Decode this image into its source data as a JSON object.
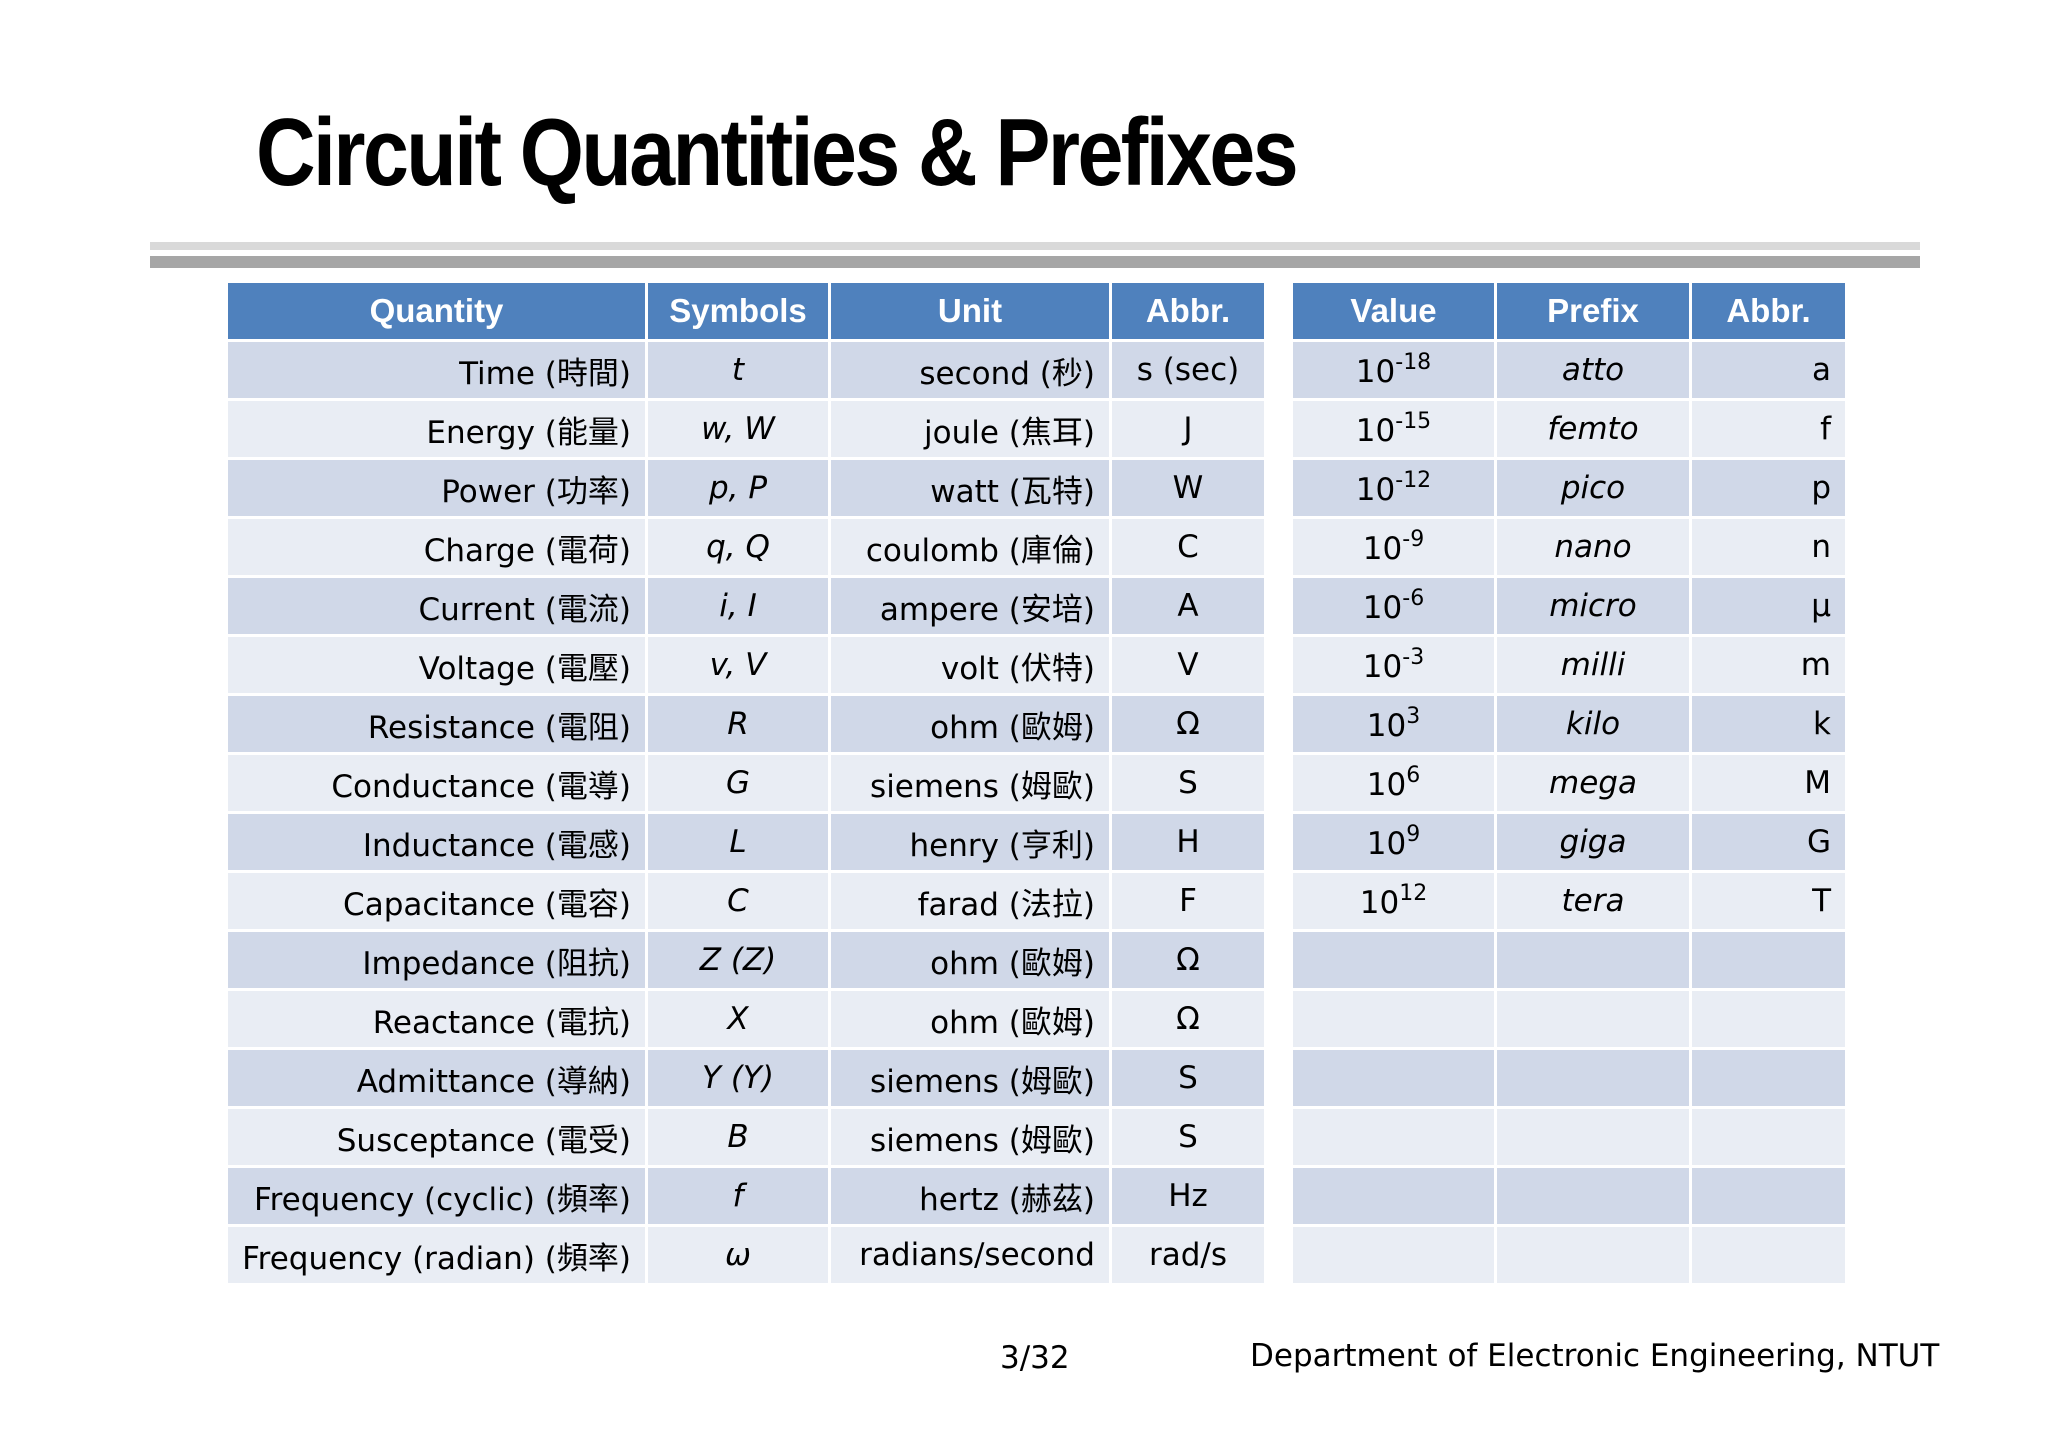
{
  "title": "Circuit Quantities & Prefixes",
  "quantities_table": {
    "headers": [
      "Quantity",
      "Symbols",
      "Unit",
      "Abbr."
    ],
    "rows": [
      {
        "quantity": "Time",
        "quantity_zh": "(時間)",
        "symbols": "t",
        "unit": "second (秒)",
        "abbr": "s (sec)"
      },
      {
        "quantity": "Energy",
        "quantity_zh": "(能量)",
        "symbols": "w, W",
        "unit": "joule (焦耳)",
        "abbr": "J"
      },
      {
        "quantity": "Power",
        "quantity_zh": "(功率)",
        "symbols": "p, P",
        "unit": "watt (瓦特)",
        "abbr": "W"
      },
      {
        "quantity": "Charge",
        "quantity_zh": "(電荷)",
        "symbols": "q, Q",
        "unit": "coulomb (庫倫)",
        "abbr": "C"
      },
      {
        "quantity": "Current",
        "quantity_zh": "(電流)",
        "symbols": "i, I",
        "unit": "ampere (安培)",
        "abbr": "A"
      },
      {
        "quantity": "Voltage",
        "quantity_zh": "(電壓)",
        "symbols": "v, V",
        "unit": "volt (伏特)",
        "abbr": "V"
      },
      {
        "quantity": "Resistance",
        "quantity_zh": "(電阻)",
        "symbols": "R",
        "unit": "ohm (歐姆)",
        "abbr": "Ω"
      },
      {
        "quantity": "Conductance",
        "quantity_zh": "(電導)",
        "symbols": "G",
        "unit": "siemens (姆歐)",
        "abbr": "S"
      },
      {
        "quantity": "Inductance",
        "quantity_zh": "(電感)",
        "symbols": "L",
        "unit": "henry (亨利)",
        "abbr": "H"
      },
      {
        "quantity": "Capacitance",
        "quantity_zh": "(電容)",
        "symbols": "C",
        "unit": "farad (法拉)",
        "abbr": "F"
      },
      {
        "quantity": "Impedance",
        "quantity_zh": "(阻抗)",
        "symbols": "Z (Z)",
        "unit": "ohm (歐姆)",
        "abbr": "Ω"
      },
      {
        "quantity": "Reactance",
        "quantity_zh": "(電抗)",
        "symbols": "X",
        "unit": "ohm (歐姆)",
        "abbr": "Ω"
      },
      {
        "quantity": "Admittance",
        "quantity_zh": "(導納)",
        "symbols": "Y (Y)",
        "unit": "siemens (姆歐)",
        "abbr": "S"
      },
      {
        "quantity": "Susceptance",
        "quantity_zh": "(電受)",
        "symbols": "B",
        "unit": "siemens (姆歐)",
        "abbr": "S"
      },
      {
        "quantity": "Frequency (cyclic)",
        "quantity_zh": "(頻率)",
        "symbols": "f",
        "unit": "hertz (赫茲)",
        "abbr": "Hz"
      },
      {
        "quantity": "Frequency (radian)",
        "quantity_zh": "(頻率)",
        "symbols": "ω",
        "unit": "radians/second",
        "abbr": "rad/s"
      }
    ]
  },
  "prefixes_table": {
    "headers": [
      "Value",
      "Prefix",
      "Abbr."
    ],
    "rows": [
      {
        "base": "10",
        "exp": "-18",
        "prefix": "atto",
        "abbr": "a"
      },
      {
        "base": "10",
        "exp": "-15",
        "prefix": "femto",
        "abbr": "f"
      },
      {
        "base": "10",
        "exp": "-12",
        "prefix": "pico",
        "abbr": "p"
      },
      {
        "base": "10",
        "exp": "-9",
        "prefix": "nano",
        "abbr": "n"
      },
      {
        "base": "10",
        "exp": "-6",
        "prefix": "micro",
        "abbr": "μ"
      },
      {
        "base": "10",
        "exp": "-3",
        "prefix": "milli",
        "abbr": "m"
      },
      {
        "base": "10",
        "exp": "3",
        "prefix": "kilo",
        "abbr": "k"
      },
      {
        "base": "10",
        "exp": "6",
        "prefix": "mega",
        "abbr": "M"
      },
      {
        "base": "10",
        "exp": "9",
        "prefix": "giga",
        "abbr": "G"
      },
      {
        "base": "10",
        "exp": "12",
        "prefix": "tera",
        "abbr": "T"
      },
      {
        "base": "",
        "exp": "",
        "prefix": "",
        "abbr": ""
      },
      {
        "base": "",
        "exp": "",
        "prefix": "",
        "abbr": ""
      },
      {
        "base": "",
        "exp": "",
        "prefix": "",
        "abbr": ""
      },
      {
        "base": "",
        "exp": "",
        "prefix": "",
        "abbr": ""
      },
      {
        "base": "",
        "exp": "",
        "prefix": "",
        "abbr": ""
      },
      {
        "base": "",
        "exp": "",
        "prefix": "",
        "abbr": ""
      }
    ]
  },
  "footer": {
    "page": "3/32",
    "department": "Department of Electronic Engineering, NTUT"
  }
}
